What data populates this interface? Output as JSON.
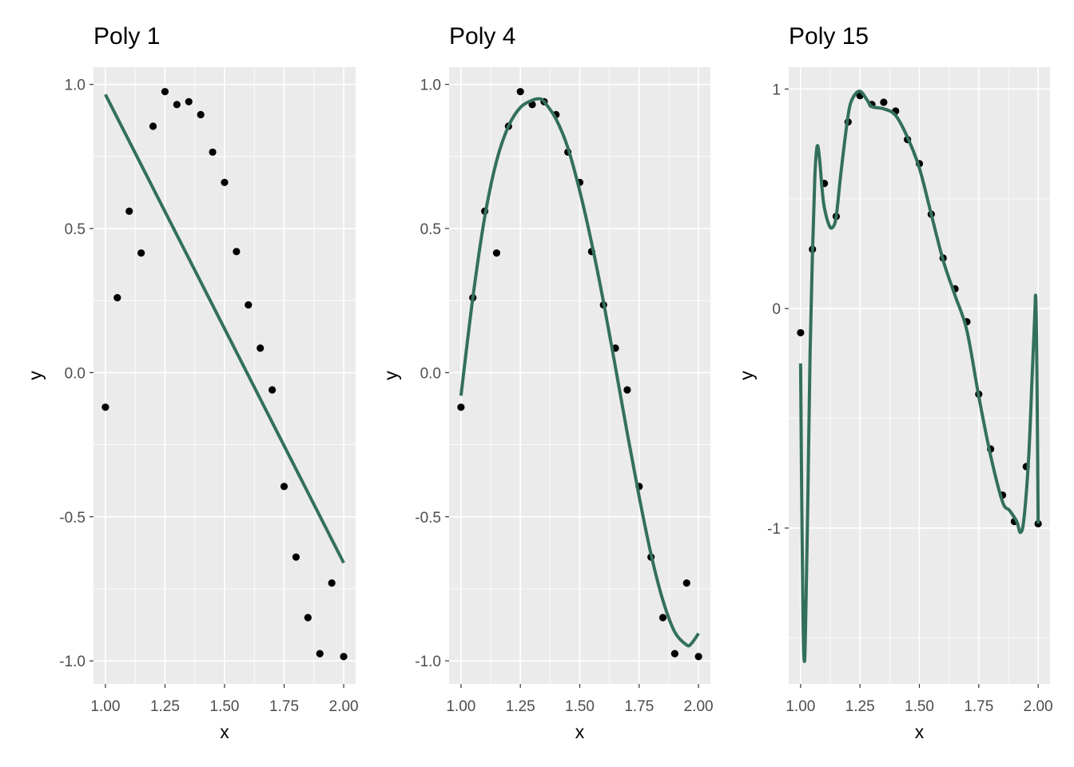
{
  "colors": {
    "fit_line": "#33705c",
    "points": "#000000",
    "panel_background": "#ebebeb",
    "grid": "#ffffff"
  },
  "chart_data": [
    {
      "type": "scatter",
      "title": "Poly  1",
      "xlabel": "x",
      "ylabel": "y",
      "xlim": [
        0.95,
        2.05
      ],
      "ylim": [
        -1.08,
        1.06
      ],
      "xticks": [
        1.0,
        1.25,
        1.5,
        1.75,
        2.0
      ],
      "xtick_labels": [
        "1.00",
        "1.25",
        "1.50",
        "1.75",
        "2.00"
      ],
      "yticks": [
        -1.0,
        -0.5,
        0.0,
        0.5,
        1.0
      ],
      "ytick_labels": [
        "-1.0",
        "-0.5",
        "0.0",
        "0.5",
        "1.0"
      ],
      "grid": true,
      "points": {
        "x": [
          1.0,
          1.05,
          1.1,
          1.15,
          1.2,
          1.25,
          1.3,
          1.35,
          1.4,
          1.45,
          1.5,
          1.55,
          1.6,
          1.65,
          1.7,
          1.75,
          1.8,
          1.85,
          1.9,
          1.95,
          2.0
        ],
        "y": [
          -0.12,
          0.26,
          0.56,
          0.415,
          0.855,
          0.975,
          0.93,
          0.94,
          0.895,
          0.765,
          0.66,
          0.42,
          0.235,
          0.085,
          -0.06,
          -0.395,
          -0.64,
          -0.85,
          -0.975,
          -0.73,
          -0.985
        ]
      },
      "fit": {
        "x": [
          1.0,
          2.0
        ],
        "y": [
          0.965,
          -0.66
        ]
      }
    },
    {
      "type": "scatter",
      "title": "Poly  4",
      "xlabel": "x",
      "ylabel": "y",
      "xlim": [
        0.95,
        2.05
      ],
      "ylim": [
        -1.08,
        1.06
      ],
      "xticks": [
        1.0,
        1.25,
        1.5,
        1.75,
        2.0
      ],
      "xtick_labels": [
        "1.00",
        "1.25",
        "1.50",
        "1.75",
        "2.00"
      ],
      "yticks": [
        -1.0,
        -0.5,
        0.0,
        0.5,
        1.0
      ],
      "ytick_labels": [
        "-1.0",
        "-0.5",
        "0.0",
        "0.5",
        "1.0"
      ],
      "grid": true,
      "points": {
        "x": [
          1.0,
          1.05,
          1.1,
          1.15,
          1.2,
          1.25,
          1.3,
          1.35,
          1.4,
          1.45,
          1.5,
          1.55,
          1.6,
          1.65,
          1.7,
          1.75,
          1.8,
          1.85,
          1.9,
          1.95,
          2.0
        ],
        "y": [
          -0.12,
          0.26,
          0.56,
          0.415,
          0.855,
          0.975,
          0.93,
          0.94,
          0.895,
          0.765,
          0.66,
          0.42,
          0.235,
          0.085,
          -0.06,
          -0.395,
          -0.64,
          -0.85,
          -0.975,
          -0.73,
          -0.985
        ]
      },
      "fit": {
        "x": [
          1.0,
          1.05,
          1.1,
          1.15,
          1.2,
          1.25,
          1.3,
          1.33,
          1.35,
          1.4,
          1.45,
          1.5,
          1.55,
          1.6,
          1.65,
          1.7,
          1.75,
          1.8,
          1.85,
          1.9,
          1.95,
          1.97,
          2.0
        ],
        "y": [
          -0.08,
          0.26,
          0.54,
          0.735,
          0.855,
          0.92,
          0.945,
          0.95,
          0.94,
          0.88,
          0.78,
          0.63,
          0.45,
          0.245,
          0.02,
          -0.21,
          -0.43,
          -0.63,
          -0.79,
          -0.9,
          -0.945,
          -0.94,
          -0.905
        ]
      }
    },
    {
      "type": "scatter",
      "title": "Poly  15",
      "xlabel": "x",
      "ylabel": "y",
      "xlim": [
        0.95,
        2.05
      ],
      "ylim": [
        -1.71,
        1.1
      ],
      "xticks": [
        1.0,
        1.25,
        1.5,
        1.75,
        2.0
      ],
      "xtick_labels": [
        "1.00",
        "1.25",
        "1.50",
        "1.75",
        "2.00"
      ],
      "yticks": [
        -1,
        0,
        1
      ],
      "ytick_labels": [
        "-1",
        "0",
        "1"
      ],
      "grid": true,
      "points": {
        "x": [
          1.0,
          1.05,
          1.1,
          1.15,
          1.2,
          1.25,
          1.3,
          1.35,
          1.4,
          1.45,
          1.5,
          1.55,
          1.6,
          1.65,
          1.7,
          1.75,
          1.8,
          1.85,
          1.9,
          1.95,
          2.0
        ],
        "y": [
          -0.11,
          0.27,
          0.57,
          0.42,
          0.85,
          0.97,
          0.93,
          0.94,
          0.9,
          0.77,
          0.66,
          0.43,
          0.23,
          0.09,
          -0.06,
          -0.39,
          -0.64,
          -0.85,
          -0.97,
          -0.72,
          -0.98
        ]
      },
      "fit": {
        "x": [
          1.0,
          1.005,
          1.01,
          1.015,
          1.02,
          1.03,
          1.04,
          1.05,
          1.06,
          1.07,
          1.08,
          1.09,
          1.1,
          1.12,
          1.135,
          1.15,
          1.17,
          1.2,
          1.22,
          1.25,
          1.28,
          1.3,
          1.35,
          1.4,
          1.45,
          1.5,
          1.55,
          1.6,
          1.65,
          1.7,
          1.75,
          1.8,
          1.85,
          1.88,
          1.91,
          1.925,
          1.94,
          1.96,
          1.975,
          1.985,
          1.99,
          1.995,
          2.0
        ],
        "y": [
          -0.25,
          -0.9,
          -1.4,
          -1.6,
          -1.5,
          -0.9,
          -0.2,
          0.25,
          0.6,
          0.74,
          0.68,
          0.55,
          0.46,
          0.38,
          0.37,
          0.42,
          0.62,
          0.88,
          0.96,
          0.99,
          0.95,
          0.92,
          0.91,
          0.88,
          0.78,
          0.64,
          0.43,
          0.22,
          0.06,
          -0.1,
          -0.4,
          -0.67,
          -0.88,
          -0.92,
          -0.97,
          -1.02,
          -0.96,
          -0.68,
          -0.3,
          -0.05,
          0.05,
          -0.3,
          -0.98
        ]
      }
    }
  ]
}
